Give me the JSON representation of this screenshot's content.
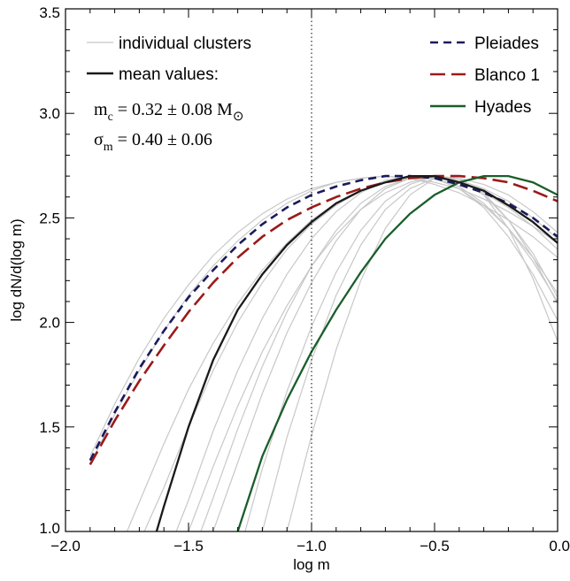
{
  "chart_data": {
    "type": "line",
    "xlabel": "log m",
    "ylabel": "log dN/d(log m)",
    "xlim": [
      -2.0,
      0.0
    ],
    "ylim": [
      1.0,
      3.5
    ],
    "xticks": [
      -2.0,
      -1.5,
      -1.0,
      -0.5,
      0.0
    ],
    "xtick_labels": [
      "−2.0",
      "−1.5",
      "−1.0",
      "−0.5",
      "0.0"
    ],
    "yticks": [
      1.0,
      1.5,
      2.0,
      2.5,
      3.0,
      3.5
    ],
    "ytick_labels": [
      "1.0",
      "1.5",
      "2.0",
      "2.5",
      "3.0",
      "3.5"
    ],
    "grid": false,
    "vline": {
      "x": -1.0,
      "style": "dotted",
      "color": "#000000"
    },
    "legend": {
      "left_entries": [
        {
          "label": "individual clusters",
          "color": "#c8c8c8",
          "dash": "solid"
        },
        {
          "label": "mean values:",
          "color": "#1a1a1a",
          "dash": "solid"
        }
      ],
      "right_entries": [
        {
          "label": "Pleiades",
          "color": "#1a1a5e",
          "dash": "dashed"
        },
        {
          "label": "Blanco 1",
          "color": "#9b1a1a",
          "dash": "longdash"
        },
        {
          "label": "Hyades",
          "color": "#1a5e2a",
          "dash": "solid"
        }
      ]
    },
    "annotations": {
      "mc": {
        "sym": "m",
        "sub": "c",
        "rest": " = 0.32 ± 0.08 M",
        "suffix": "⊙"
      },
      "sigma": {
        "sym": "σ",
        "sub": "m",
        "rest": " = 0.40 ± 0.06"
      }
    },
    "series": [
      {
        "name": "Pleiades",
        "color": "#1a1a5e",
        "dash": "dashed",
        "x": [
          -1.9,
          -1.8,
          -1.7,
          -1.6,
          -1.5,
          -1.4,
          -1.3,
          -1.2,
          -1.1,
          -1.0,
          -0.9,
          -0.8,
          -0.7,
          -0.6,
          -0.5,
          -0.4,
          -0.3,
          -0.2,
          -0.1,
          0.0
        ],
        "y": [
          1.34,
          1.57,
          1.78,
          1.96,
          2.12,
          2.25,
          2.37,
          2.47,
          2.55,
          2.61,
          2.65,
          2.68,
          2.7,
          2.7,
          2.69,
          2.66,
          2.62,
          2.57,
          2.5,
          2.41
        ]
      },
      {
        "name": "Blanco 1",
        "color": "#9b1a1a",
        "dash": "longdash",
        "x": [
          -1.9,
          -1.8,
          -1.7,
          -1.6,
          -1.5,
          -1.4,
          -1.3,
          -1.2,
          -1.1,
          -1.0,
          -0.9,
          -0.8,
          -0.7,
          -0.6,
          -0.5,
          -0.4,
          -0.3,
          -0.2,
          -0.1,
          0.0
        ],
        "y": [
          1.32,
          1.53,
          1.72,
          1.89,
          2.05,
          2.19,
          2.31,
          2.41,
          2.49,
          2.55,
          2.6,
          2.64,
          2.67,
          2.69,
          2.7,
          2.7,
          2.69,
          2.67,
          2.63,
          2.58
        ]
      },
      {
        "name": "Hyades",
        "color": "#1a5e2a",
        "dash": "solid",
        "x": [
          -1.3,
          -1.2,
          -1.1,
          -1.0,
          -0.9,
          -0.8,
          -0.7,
          -0.6,
          -0.5,
          -0.4,
          -0.3,
          -0.2,
          -0.1,
          0.0
        ],
        "y": [
          1.0,
          1.36,
          1.63,
          1.86,
          2.06,
          2.24,
          2.4,
          2.52,
          2.61,
          2.67,
          2.7,
          2.7,
          2.67,
          2.61
        ]
      },
      {
        "name": "mean values:",
        "color": "#1a1a1a",
        "dash": "solid",
        "x": [
          -1.63,
          -1.6,
          -1.5,
          -1.4,
          -1.3,
          -1.2,
          -1.1,
          -1.0,
          -0.9,
          -0.8,
          -0.7,
          -0.6,
          -0.5,
          -0.4,
          -0.3,
          -0.2,
          -0.1,
          0.0
        ],
        "y": [
          1.0,
          1.12,
          1.5,
          1.82,
          2.06,
          2.23,
          2.37,
          2.48,
          2.57,
          2.63,
          2.67,
          2.7,
          2.7,
          2.67,
          2.63,
          2.56,
          2.48,
          2.38
        ]
      }
    ],
    "individual_clusters": [
      {
        "x": [
          -1.9,
          -1.8,
          -1.7,
          -1.6,
          -1.5,
          -1.4,
          -1.3,
          -1.2,
          -1.1,
          -1.0,
          -0.9,
          -0.8,
          -0.7,
          -0.6,
          -0.5,
          -0.4,
          -0.3,
          -0.2,
          -0.1,
          0.0
        ],
        "y": [
          1.32,
          1.56,
          1.77,
          1.96,
          2.13,
          2.27,
          2.39,
          2.49,
          2.57,
          2.63,
          2.67,
          2.69,
          2.7,
          2.69,
          2.66,
          2.62,
          2.56,
          2.49,
          2.41,
          2.31
        ]
      },
      {
        "x": [
          -1.9,
          -1.8,
          -1.7,
          -1.6,
          -1.5,
          -1.4,
          -1.3,
          -1.2,
          -1.1,
          -1.0,
          -0.9,
          -0.8,
          -0.7,
          -0.6,
          -0.5,
          -0.4,
          -0.3,
          -0.2,
          -0.1,
          0.0
        ],
        "y": [
          1.36,
          1.61,
          1.83,
          2.02,
          2.18,
          2.32,
          2.43,
          2.52,
          2.59,
          2.64,
          2.67,
          2.69,
          2.7,
          2.69,
          2.67,
          2.64,
          2.59,
          2.53,
          2.46,
          2.38
        ]
      },
      {
        "x": [
          -1.75,
          -1.7,
          -1.6,
          -1.5,
          -1.4,
          -1.3,
          -1.2,
          -1.1,
          -1.0,
          -0.9,
          -0.8,
          -0.7,
          -0.6,
          -0.5,
          -0.4,
          -0.3,
          -0.2,
          -0.1,
          0.0
        ],
        "y": [
          1.0,
          1.14,
          1.42,
          1.68,
          1.9,
          2.09,
          2.25,
          2.38,
          2.49,
          2.57,
          2.63,
          2.67,
          2.69,
          2.7,
          2.68,
          2.64,
          2.58,
          2.5,
          2.4
        ]
      },
      {
        "x": [
          -1.68,
          -1.6,
          -1.5,
          -1.4,
          -1.3,
          -1.2,
          -1.1,
          -1.0,
          -0.9,
          -0.8,
          -0.7,
          -0.6,
          -0.5,
          -0.4,
          -0.3,
          -0.2,
          -0.1,
          0.0
        ],
        "y": [
          1.0,
          1.21,
          1.5,
          1.77,
          2.0,
          2.19,
          2.35,
          2.47,
          2.56,
          2.63,
          2.67,
          2.69,
          2.69,
          2.67,
          2.62,
          2.55,
          2.46,
          2.35
        ]
      },
      {
        "x": [
          -1.55,
          -1.5,
          -1.4,
          -1.3,
          -1.2,
          -1.1,
          -1.0,
          -0.9,
          -0.8,
          -0.7,
          -0.6,
          -0.5,
          -0.4,
          -0.3,
          -0.2,
          -0.1,
          0.0
        ],
        "y": [
          1.0,
          1.15,
          1.48,
          1.77,
          2.02,
          2.23,
          2.4,
          2.53,
          2.62,
          2.68,
          2.7,
          2.69,
          2.64,
          2.56,
          2.45,
          2.31,
          2.14
        ]
      },
      {
        "x": [
          -1.45,
          -1.4,
          -1.3,
          -1.2,
          -1.1,
          -1.0,
          -0.9,
          -0.8,
          -0.7,
          -0.6,
          -0.5,
          -0.4,
          -0.3,
          -0.2,
          -0.1,
          0.0
        ],
        "y": [
          1.0,
          1.16,
          1.49,
          1.79,
          2.05,
          2.27,
          2.44,
          2.57,
          2.65,
          2.69,
          2.69,
          2.65,
          2.57,
          2.45,
          2.29,
          2.1
        ]
      },
      {
        "x": [
          -1.4,
          -1.3,
          -1.2,
          -1.1,
          -1.0,
          -0.9,
          -0.8,
          -0.7,
          -0.6,
          -0.5,
          -0.4,
          -0.3,
          -0.2,
          -0.1,
          0.0
        ],
        "y": [
          1.0,
          1.33,
          1.66,
          1.95,
          2.19,
          2.39,
          2.54,
          2.64,
          2.69,
          2.69,
          2.64,
          2.55,
          2.41,
          2.23,
          2.01
        ]
      },
      {
        "x": [
          -1.27,
          -1.2,
          -1.1,
          -1.0,
          -0.9,
          -0.8,
          -0.7,
          -0.6,
          -0.5,
          -0.4,
          -0.3,
          -0.2,
          -0.1,
          0.0
        ],
        "y": [
          1.0,
          1.3,
          1.67,
          1.98,
          2.24,
          2.44,
          2.58,
          2.66,
          2.7,
          2.68,
          2.61,
          2.49,
          2.33,
          2.12
        ]
      },
      {
        "x": [
          -1.2,
          -1.1,
          -1.0,
          -0.9,
          -0.8,
          -0.7,
          -0.6,
          -0.5,
          -0.4,
          -0.3,
          -0.2,
          -0.1,
          0.0
        ],
        "y": [
          1.0,
          1.45,
          1.82,
          2.13,
          2.37,
          2.54,
          2.64,
          2.69,
          2.68,
          2.62,
          2.49,
          2.31,
          2.09
        ]
      },
      {
        "x": [
          -1.1,
          -1.0,
          -0.9,
          -0.8,
          -0.7,
          -0.6,
          -0.5,
          -0.4,
          -0.3,
          -0.2,
          -0.1,
          0.0
        ],
        "y": [
          1.0,
          1.46,
          1.87,
          2.2,
          2.45,
          2.61,
          2.69,
          2.69,
          2.61,
          2.45,
          2.21,
          1.91
        ]
      },
      {
        "x": [
          -1.5,
          -1.4,
          -1.3,
          -1.2,
          -1.1,
          -1.0,
          -0.9,
          -0.8,
          -0.7,
          -0.6,
          -0.5,
          -0.4,
          -0.3,
          -0.2,
          -0.1,
          0.0
        ],
        "y": [
          1.0,
          1.31,
          1.6,
          1.86,
          2.08,
          2.27,
          2.42,
          2.54,
          2.62,
          2.67,
          2.7,
          2.69,
          2.66,
          2.61,
          2.53,
          2.43
        ]
      }
    ]
  }
}
